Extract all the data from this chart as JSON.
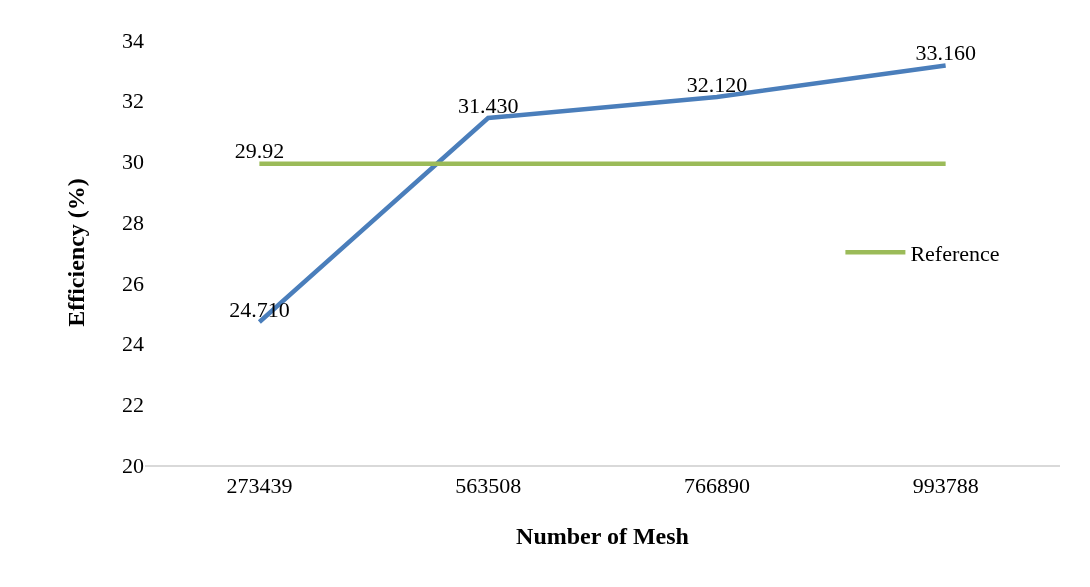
{
  "chart_data": {
    "type": "line",
    "xlabel": "Number of Mesh",
    "ylabel": "Efficiency (%)",
    "categories": [
      "273439",
      "563508",
      "766890",
      "993788"
    ],
    "series": [
      {
        "color": "#4a7ebb",
        "values": [
          24.71,
          31.43,
          32.12,
          33.16
        ],
        "value_labels": [
          "24.710",
          "31.430",
          "32.120",
          "33.160"
        ]
      },
      {
        "name": "Reference",
        "color": "#9bbb59",
        "values": [
          29.92,
          29.92,
          29.92,
          29.92
        ],
        "value_labels": [
          "29.92",
          null,
          null,
          null
        ]
      }
    ],
    "ylim": [
      20,
      34
    ],
    "yticks": [
      20,
      22,
      24,
      26,
      28,
      30,
      32,
      34
    ],
    "grid": false,
    "legend": "right",
    "marker": "none",
    "line_style": "solid"
  }
}
